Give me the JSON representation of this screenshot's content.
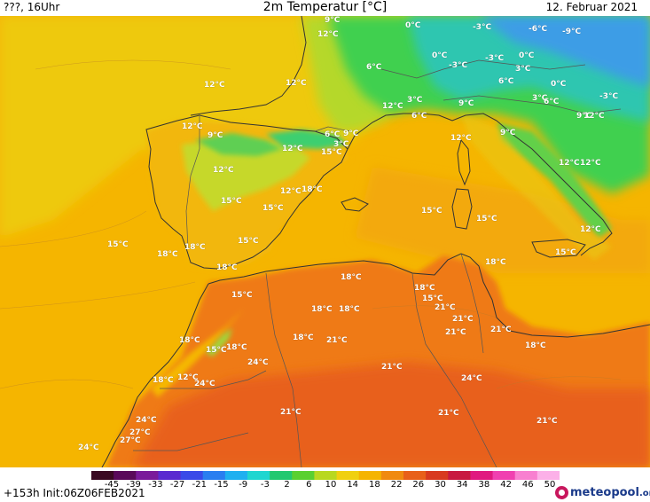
{
  "header": {
    "left": "???, 16Uhr",
    "title": "2m Temperatur [°C]",
    "date": "12. Februar 2021"
  },
  "legend": {
    "ticks": [
      "-45",
      "-39",
      "-33",
      "-27",
      "-21",
      "-15",
      "-9",
      "-3",
      "2",
      "6",
      "10",
      "14",
      "18",
      "22",
      "26",
      "30",
      "34",
      "38",
      "42",
      "46",
      "50"
    ]
  },
  "footer": {
    "run": "+153h  Init:06Z06FEB2021",
    "logo_main": "meteopool",
    "logo_suffix": ".org"
  },
  "colors": {
    "sea_warm": "#f5b800",
    "sea_north": "#f0c800",
    "land_hot": "#ef7a10",
    "land_hotter": "#e8611a",
    "cold_green": "#3fcf4a",
    "cold_cyan": "#2fc6b0",
    "cold_blue": "#3fa0e8",
    "border_line": "#333333"
  },
  "map_labels": [
    {
      "text": "9°C"
    },
    {
      "text": "0°C"
    },
    {
      "text": "12°C"
    },
    {
      "text": "-3°C"
    },
    {
      "text": "-6°C"
    },
    {
      "text": "-9°C"
    },
    {
      "text": "0°C"
    },
    {
      "text": "-3°C"
    },
    {
      "text": "-3°C"
    },
    {
      "text": "0°C"
    },
    {
      "text": "6°C"
    },
    {
      "text": "3°C"
    },
    {
      "text": "12°C"
    },
    {
      "text": "12°C"
    },
    {
      "text": "6°C"
    },
    {
      "text": "0°C"
    },
    {
      "text": "-3°C"
    },
    {
      "text": "12°C"
    },
    {
      "text": "3°C"
    },
    {
      "text": "6°C"
    },
    {
      "text": "9°C"
    },
    {
      "text": "6°C"
    },
    {
      "text": "3°C"
    },
    {
      "text": "12°C"
    },
    {
      "text": "12°C"
    },
    {
      "text": "9°C"
    },
    {
      "text": "12°C"
    },
    {
      "text": "6°C"
    },
    {
      "text": "9°C"
    },
    {
      "text": "9°C"
    },
    {
      "text": "12°C"
    },
    {
      "text": "3°C"
    },
    {
      "text": "15°C"
    },
    {
      "text": "12°C"
    },
    {
      "text": "12°C"
    },
    {
      "text": "9°C"
    },
    {
      "text": "12°C"
    },
    {
      "text": "12°C"
    },
    {
      "text": "18°C"
    },
    {
      "text": "15°C"
    },
    {
      "text": "15°C"
    },
    {
      "text": "15°C"
    },
    {
      "text": "15°C"
    },
    {
      "text": "15°C"
    },
    {
      "text": "12°C"
    },
    {
      "text": "15°C"
    },
    {
      "text": "18°C"
    },
    {
      "text": "15°C"
    },
    {
      "text": "18°C"
    },
    {
      "text": "18°C"
    },
    {
      "text": "15°C"
    },
    {
      "text": "18°C"
    },
    {
      "text": "18°C"
    },
    {
      "text": "18°C"
    },
    {
      "text": "15°C"
    },
    {
      "text": "18°C"
    },
    {
      "text": "18°C"
    },
    {
      "text": "21°C"
    },
    {
      "text": "21°C"
    },
    {
      "text": "21°C"
    },
    {
      "text": "18°C"
    },
    {
      "text": "21°C"
    },
    {
      "text": "15°C"
    },
    {
      "text": "18°C"
    },
    {
      "text": "18°C"
    },
    {
      "text": "21°C"
    },
    {
      "text": "18°C"
    },
    {
      "text": "12°C"
    },
    {
      "text": "18°C"
    },
    {
      "text": "24°C"
    },
    {
      "text": "21°C"
    },
    {
      "text": "24°C"
    },
    {
      "text": "24°C"
    },
    {
      "text": "21°C"
    },
    {
      "text": "21°C"
    },
    {
      "text": "24°C"
    },
    {
      "text": "27°C"
    },
    {
      "text": "21°C"
    },
    {
      "text": "27°C"
    },
    {
      "text": "24°C"
    }
  ]
}
